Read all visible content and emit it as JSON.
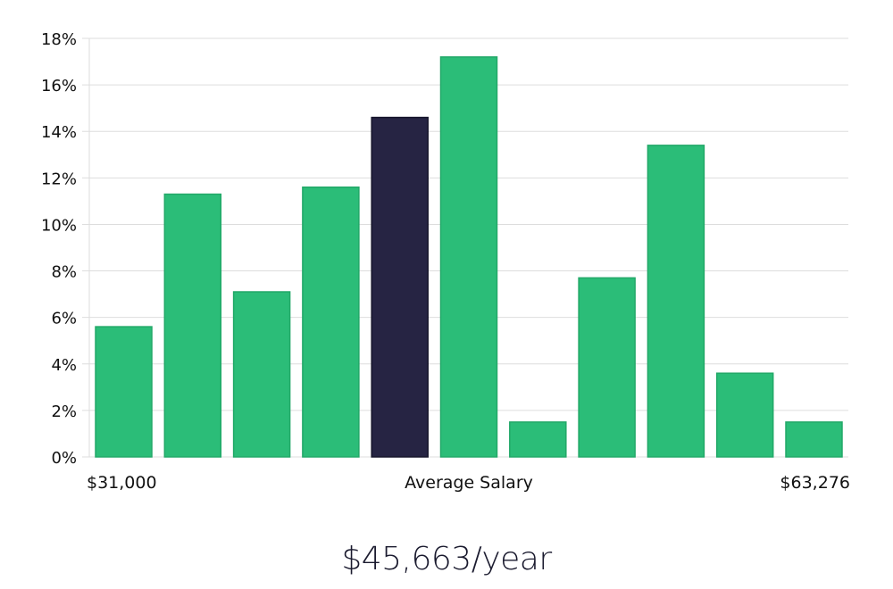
{
  "chart_data": {
    "type": "bar",
    "title": "",
    "xlabel": "Average Salary",
    "ylabel": "",
    "x_min_label": "$31,000",
    "x_max_label": "$63,276",
    "ylim": [
      0,
      18
    ],
    "y_ticks": [
      0,
      2,
      4,
      6,
      8,
      10,
      12,
      14,
      16,
      18
    ],
    "y_tick_labels": [
      "0%",
      "2%",
      "4%",
      "6%",
      "8%",
      "10%",
      "12%",
      "14%",
      "16%",
      "18%"
    ],
    "values": [
      5.6,
      11.3,
      7.1,
      11.6,
      14.6,
      17.2,
      1.5,
      7.7,
      13.4,
      3.6,
      1.5
    ],
    "highlight_index": 4,
    "grid": true,
    "colors": {
      "bar": "#2bbd78",
      "highlight": "#262443",
      "grid": "#dddddd"
    }
  },
  "headline": "$45,663/year"
}
